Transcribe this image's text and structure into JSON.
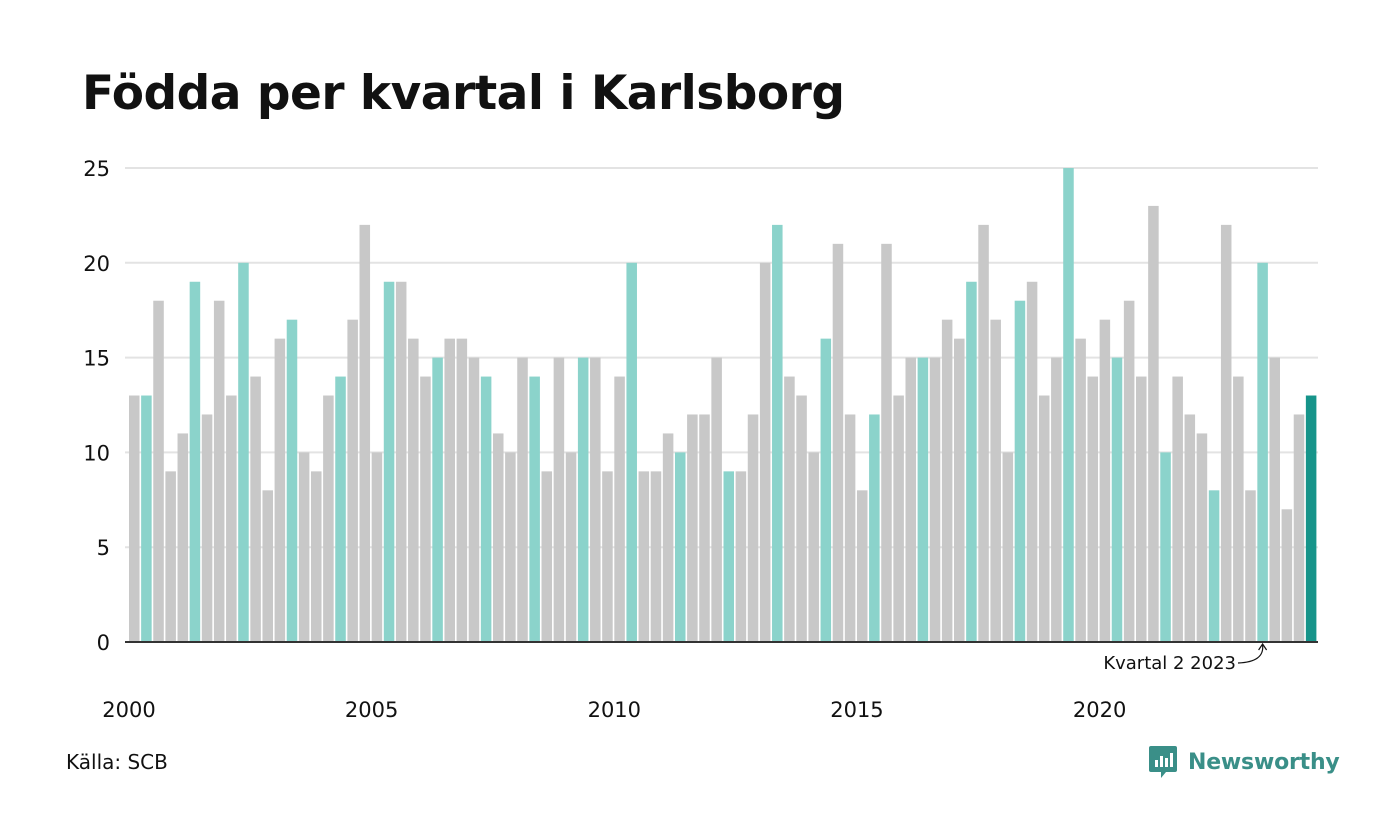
{
  "title": "Födda per kvartal i Karlsborg",
  "source": "Källa: SCB",
  "brand": {
    "name": "Newsworthy",
    "icon": "newsworthy-logo-icon"
  },
  "colors": {
    "other_quarters": "#c8c8c8",
    "same_quarter": "#8bd3cb",
    "latest_quarter": "#16948a",
    "gridline": "#e3e3e3",
    "axis": "#333333"
  },
  "chart_data": {
    "type": "bar",
    "title": "Födda per kvartal i Karlsborg",
    "xlabel": "",
    "ylabel": "",
    "ylim": [
      0,
      25
    ],
    "yticks": [
      0,
      5,
      10,
      15,
      20,
      25
    ],
    "xticks": [
      "2000",
      "2005",
      "2010",
      "2015",
      "2020"
    ],
    "grid": true,
    "annotation": "Kvartal 2 2023",
    "categories": [
      "2000 Q1",
      "2000 Q2",
      "2000 Q3",
      "2000 Q4",
      "2001 Q1",
      "2001 Q2",
      "2001 Q3",
      "2001 Q4",
      "2002 Q1",
      "2002 Q2",
      "2002 Q3",
      "2002 Q4",
      "2003 Q1",
      "2003 Q2",
      "2003 Q3",
      "2003 Q4",
      "2004 Q1",
      "2004 Q2",
      "2004 Q3",
      "2004 Q4",
      "2005 Q1",
      "2005 Q2",
      "2005 Q3",
      "2005 Q4",
      "2006 Q1",
      "2006 Q2",
      "2006 Q3",
      "2006 Q4",
      "2007 Q1",
      "2007 Q2",
      "2007 Q3",
      "2007 Q4",
      "2008 Q1",
      "2008 Q2",
      "2008 Q3",
      "2008 Q4",
      "2009 Q1",
      "2009 Q2",
      "2009 Q3",
      "2009 Q4",
      "2010 Q1",
      "2010 Q2",
      "2010 Q3",
      "2010 Q4",
      "2011 Q1",
      "2011 Q2",
      "2011 Q3",
      "2011 Q4",
      "2012 Q1",
      "2012 Q2",
      "2012 Q3",
      "2012 Q4",
      "2013 Q1",
      "2013 Q2",
      "2013 Q3",
      "2013 Q4",
      "2014 Q1",
      "2014 Q2",
      "2014 Q3",
      "2014 Q4",
      "2015 Q1",
      "2015 Q2",
      "2015 Q3",
      "2015 Q4",
      "2016 Q1",
      "2016 Q2",
      "2016 Q3",
      "2016 Q4",
      "2017 Q1",
      "2017 Q2",
      "2017 Q3",
      "2017 Q4",
      "2018 Q1",
      "2018 Q2",
      "2018 Q3",
      "2018 Q4",
      "2019 Q1",
      "2019 Q2",
      "2019 Q3",
      "2019 Q4",
      "2020 Q1",
      "2020 Q2",
      "2020 Q3",
      "2020 Q4",
      "2021 Q1",
      "2021 Q2",
      "2021 Q3",
      "2021 Q4",
      "2022 Q1",
      "2022 Q2",
      "2022 Q3",
      "2022 Q4",
      "2023 Q1",
      "2023 Q2",
      "2023 Q3",
      "2023 Q4",
      "2024 Q1",
      "2024 Q2"
    ],
    "values": [
      13,
      13,
      18,
      9,
      11,
      19,
      12,
      18,
      13,
      20,
      14,
      8,
      16,
      17,
      10,
      9,
      13,
      14,
      17,
      22,
      10,
      19,
      19,
      16,
      14,
      15,
      16,
      16,
      15,
      14,
      11,
      10,
      15,
      14,
      9,
      15,
      10,
      15,
      15,
      9,
      14,
      20,
      9,
      9,
      11,
      10,
      12,
      12,
      15,
      9,
      9,
      12,
      20,
      22,
      14,
      13,
      10,
      16,
      21,
      12,
      8,
      12,
      21,
      13,
      15,
      15,
      15,
      17,
      16,
      19,
      22,
      17,
      10,
      18,
      19,
      13,
      15,
      25,
      16,
      14,
      17,
      15,
      18,
      14,
      23,
      10,
      14,
      12,
      11,
      8,
      22,
      14,
      8,
      20,
      15,
      7,
      12,
      13
    ]
  }
}
